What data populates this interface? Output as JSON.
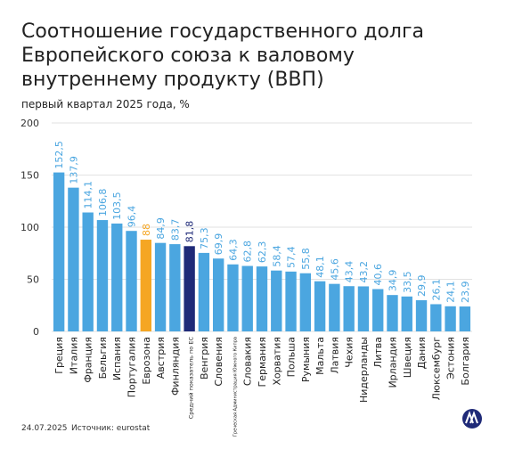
{
  "chart_data": {
    "type": "bar",
    "title": "Соотношение государственного долга Европейского союза к валовому внутреннему продукту (ВВП)",
    "subtitle": "первый квартал 2025 года, %",
    "categories": [
      "Греция",
      "Италия",
      "Франция",
      "Бельгия",
      "Испания",
      "Португалия",
      "Еврозона",
      "Австрия",
      "Финляндия",
      "Средний показатель по ЕС",
      "Венгрия",
      "Словения",
      "Греческая Администрация Южного Кипра",
      "Словакия",
      "Германия",
      "Хорватия",
      "Польша",
      "Румыния",
      "Мальта",
      "Латвия",
      "Чехия",
      "Нидерланды",
      "Литва",
      "Ирландия",
      "Швеция",
      "Дания",
      "Люксембург",
      "Эстония",
      "Болгария"
    ],
    "values": [
      152.5,
      137.9,
      114.1,
      106.8,
      103.5,
      96.4,
      88,
      84.9,
      83.7,
      81.8,
      75.3,
      69.9,
      64.3,
      62.8,
      62.3,
      58.4,
      57.4,
      55.8,
      48.1,
      45.6,
      43.4,
      43.2,
      40.6,
      34.9,
      33.5,
      29.9,
      26.1,
      24.1,
      23.9
    ],
    "value_labels": [
      "152,5",
      "137,9",
      "114,1",
      "106,8",
      "103,5",
      "96,4",
      "88",
      "84,9",
      "83,7",
      "81,8",
      "75,3",
      "69,9",
      "64,3",
      "62,8",
      "62,3",
      "58,4",
      "57,4",
      "55,8",
      "48,1",
      "45,6",
      "43,4",
      "43,2",
      "40,6",
      "34,9",
      "33,5",
      "29,9",
      "26,1",
      "24,1",
      "23,9"
    ],
    "colors": [
      "#4ba6e0",
      "#4ba6e0",
      "#4ba6e0",
      "#4ba6e0",
      "#4ba6e0",
      "#4ba6e0",
      "#f5a623",
      "#4ba6e0",
      "#4ba6e0",
      "#1f2a78",
      "#4ba6e0",
      "#4ba6e0",
      "#4ba6e0",
      "#4ba6e0",
      "#4ba6e0",
      "#4ba6e0",
      "#4ba6e0",
      "#4ba6e0",
      "#4ba6e0",
      "#4ba6e0",
      "#4ba6e0",
      "#4ba6e0",
      "#4ba6e0",
      "#4ba6e0",
      "#4ba6e0",
      "#4ba6e0",
      "#4ba6e0",
      "#4ba6e0",
      "#4ba6e0"
    ],
    "ylim": [
      0,
      200
    ],
    "yticks": [
      0,
      50,
      100,
      150,
      200
    ],
    "grid": true,
    "date": "24.07.2025",
    "source": "Источник: eurostat"
  }
}
